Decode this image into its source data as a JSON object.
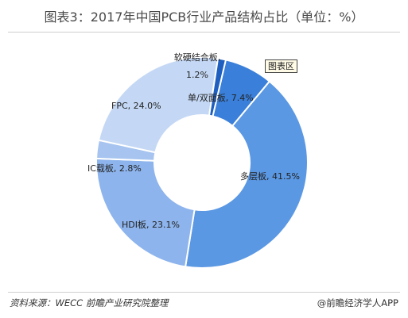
{
  "chart_data": {
    "type": "donut",
    "title": "图表3：2017年中国PCB行业产品结构占比（单位：%）",
    "start_angle_deg": 13,
    "slices": [
      {
        "label": "单/双面板",
        "value": 7.4,
        "display": "单/双面板, 7.4%",
        "color": "#3a7fd9"
      },
      {
        "label": "多层板",
        "value": 41.5,
        "display": "多层板, 41.5%",
        "color": "#5b98e3"
      },
      {
        "label": "HDI板",
        "value": 23.1,
        "display": "HDI板, 23.1%",
        "color": "#8db4ec"
      },
      {
        "label": "IC载板",
        "value": 2.8,
        "display": "IC载板, 2.8%",
        "color": "#a6c4ef"
      },
      {
        "label": "FPC",
        "value": 24.0,
        "display": "FPC, 24.0%",
        "color": "#c4d8f5"
      },
      {
        "label": "软硬结合板",
        "value": 1.2,
        "display": "软硬结合板,|1.2%",
        "color": "#1f5fbf"
      }
    ]
  },
  "tag": "图表区",
  "footer": {
    "source": "资料来源：WECC  前瞻产业研究院整理",
    "brand": "@前瞻经济学人APP"
  }
}
